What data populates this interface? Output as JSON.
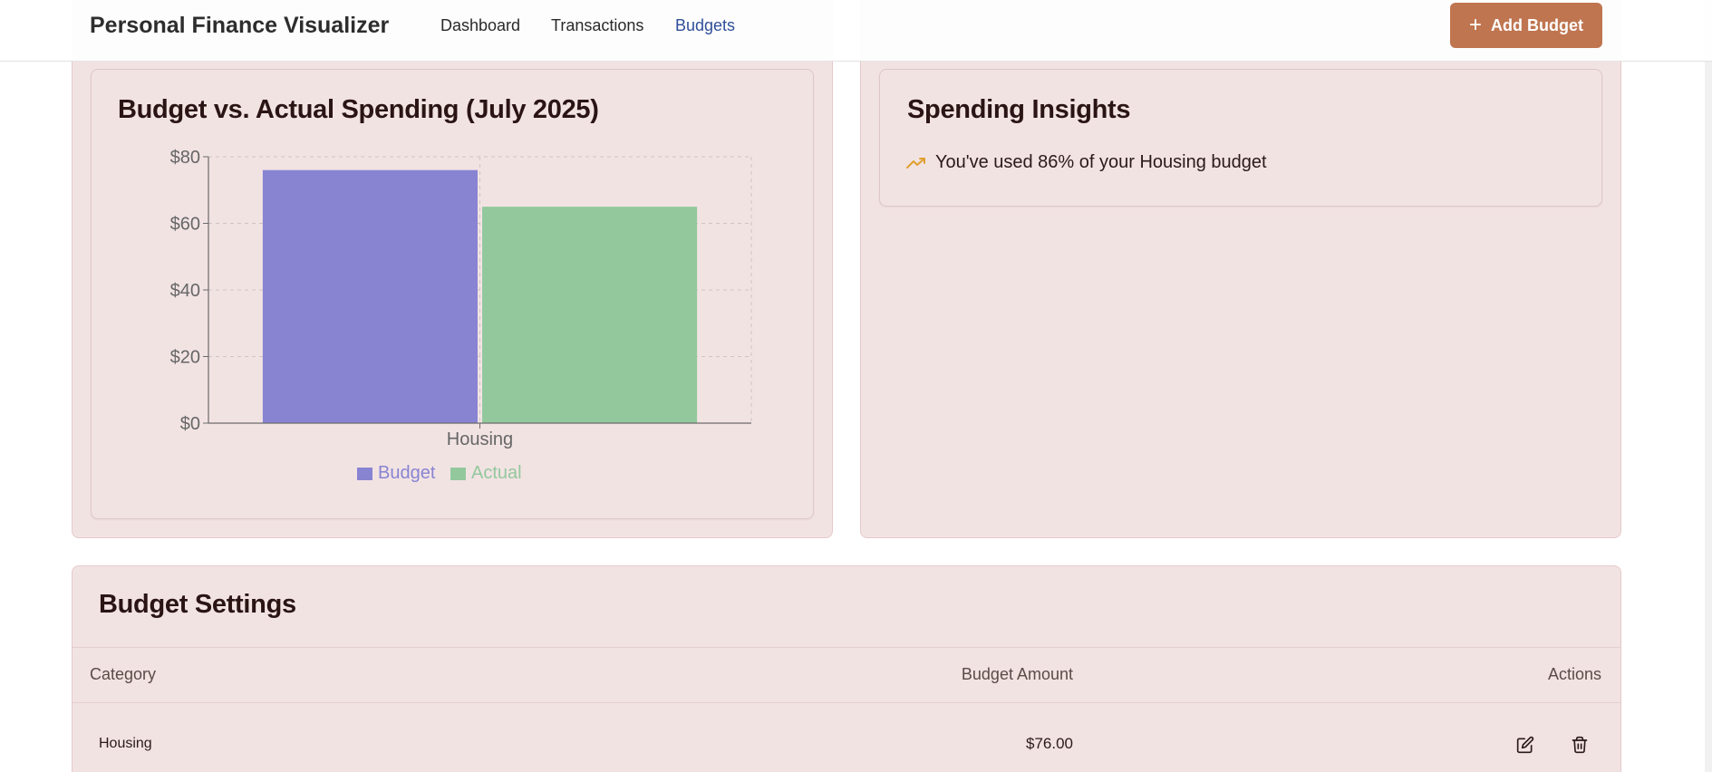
{
  "app": {
    "title": "Personal Finance Visualizer",
    "nav": [
      {
        "label": "Dashboard",
        "active": false
      },
      {
        "label": "Transactions",
        "active": false
      },
      {
        "label": "Budgets",
        "active": true
      }
    ],
    "add_button_label": "Add Budget",
    "add_button_icon": "plus-icon"
  },
  "chart_card": {
    "title": "Budget vs. Actual Spending (July 2025)"
  },
  "chart_data": {
    "type": "bar",
    "categories": [
      "Housing"
    ],
    "series": [
      {
        "name": "Budget",
        "values": [
          76
        ],
        "color": "#8884d2"
      },
      {
        "name": "Actual",
        "values": [
          65
        ],
        "color": "#93c89d"
      }
    ],
    "ylim": [
      0,
      80
    ],
    "yticks": [
      0,
      20,
      40,
      60,
      80
    ],
    "ytick_labels": [
      "$0",
      "$20",
      "$40",
      "$60",
      "$80"
    ],
    "grid": true,
    "legend": "bottom-center",
    "xlabel": "",
    "ylabel": ""
  },
  "insights": {
    "title": "Spending Insights",
    "items": [
      {
        "icon": "trending-up-icon",
        "text": "You've used 86% of your Housing budget",
        "color": "#e0a030"
      }
    ]
  },
  "settings": {
    "title": "Budget Settings",
    "columns": [
      "Category",
      "Budget Amount",
      "Actions"
    ],
    "rows": [
      {
        "category": "Housing",
        "amount": "$76.00",
        "actions": [
          "edit-icon",
          "trash-icon"
        ]
      }
    ]
  }
}
